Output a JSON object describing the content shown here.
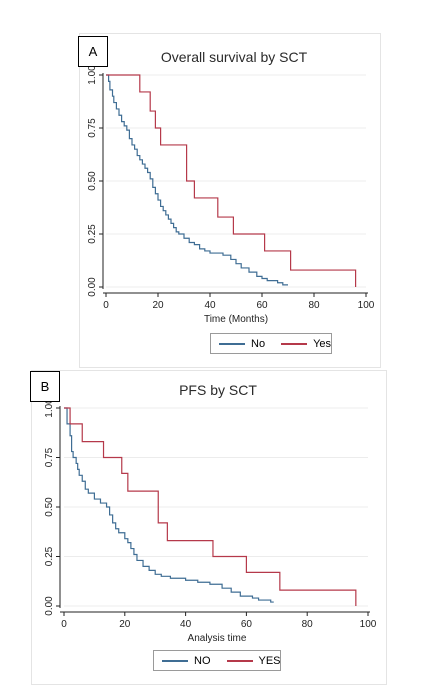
{
  "chart_data": [
    {
      "type": "line",
      "panel_label": "A",
      "title": "Overall survival by SCT",
      "xlabel": "Time (Months)",
      "ylabel": "",
      "xlim": [
        0,
        100
      ],
      "ylim": [
        0,
        1
      ],
      "x_ticks": [
        "0",
        "20",
        "40",
        "60",
        "80",
        "100"
      ],
      "y_ticks": [
        "0.00",
        "0.25",
        "0.50",
        "0.75",
        "1.00"
      ],
      "legend_position": "bottom",
      "series": [
        {
          "name": "No",
          "color": "#3f6d94",
          "step": true,
          "points": [
            [
              0,
              1.0
            ],
            [
              1,
              0.97
            ],
            [
              1.5,
              0.93
            ],
            [
              2.5,
              0.9
            ],
            [
              3,
              0.87
            ],
            [
              4,
              0.84
            ],
            [
              5,
              0.81
            ],
            [
              6,
              0.78
            ],
            [
              7,
              0.76
            ],
            [
              8,
              0.74
            ],
            [
              9,
              0.7
            ],
            [
              10,
              0.67
            ],
            [
              11,
              0.65
            ],
            [
              12,
              0.62
            ],
            [
              13,
              0.6
            ],
            [
              14,
              0.58
            ],
            [
              15,
              0.56
            ],
            [
              16,
              0.54
            ],
            [
              17,
              0.51
            ],
            [
              18,
              0.47
            ],
            [
              19,
              0.44
            ],
            [
              20,
              0.41
            ],
            [
              21,
              0.38
            ],
            [
              22,
              0.36
            ],
            [
              23,
              0.34
            ],
            [
              24,
              0.32
            ],
            [
              25,
              0.3
            ],
            [
              26,
              0.28
            ],
            [
              27,
              0.26
            ],
            [
              28,
              0.25
            ],
            [
              30,
              0.23
            ],
            [
              32,
              0.21
            ],
            [
              34,
              0.2
            ],
            [
              36,
              0.18
            ],
            [
              38,
              0.17
            ],
            [
              40,
              0.16
            ],
            [
              45,
              0.15
            ],
            [
              48,
              0.13
            ],
            [
              50,
              0.11
            ],
            [
              52,
              0.09
            ],
            [
              55,
              0.07
            ],
            [
              58,
              0.05
            ],
            [
              60,
              0.04
            ],
            [
              62,
              0.03
            ],
            [
              66,
              0.02
            ],
            [
              68,
              0.01
            ],
            [
              70,
              0.01
            ]
          ]
        },
        {
          "name": "Yes",
          "color": "#b5394a",
          "step": true,
          "points": [
            [
              0,
              1.0
            ],
            [
              13,
              0.92
            ],
            [
              17,
              0.83
            ],
            [
              19,
              0.75
            ],
            [
              21,
              0.67
            ],
            [
              31,
              0.5
            ],
            [
              34,
              0.42
            ],
            [
              43,
              0.33
            ],
            [
              49,
              0.25
            ],
            [
              61,
              0.17
            ],
            [
              71,
              0.08
            ],
            [
              96,
              0.08
            ],
            [
              96,
              0.0
            ]
          ]
        }
      ]
    },
    {
      "type": "line",
      "panel_label": "B",
      "title": "PFS by SCT",
      "xlabel": "Analysis time",
      "ylabel": "",
      "xlim": [
        0,
        100
      ],
      "ylim": [
        0,
        1
      ],
      "x_ticks": [
        "0",
        "20",
        "40",
        "60",
        "80",
        "100"
      ],
      "y_ticks": [
        "0.00",
        "0.25",
        "0.50",
        "0.75",
        "1.00"
      ],
      "legend_position": "bottom",
      "series": [
        {
          "name": "NO",
          "color": "#3f6d94",
          "step": true,
          "points": [
            [
              0,
              1.0
            ],
            [
              1,
              0.92
            ],
            [
              2,
              0.86
            ],
            [
              2.5,
              0.78
            ],
            [
              3,
              0.75
            ],
            [
              4,
              0.72
            ],
            [
              4.5,
              0.69
            ],
            [
              5,
              0.66
            ],
            [
              6,
              0.63
            ],
            [
              7,
              0.59
            ],
            [
              8,
              0.57
            ],
            [
              10,
              0.54
            ],
            [
              12,
              0.52
            ],
            [
              14,
              0.5
            ],
            [
              15,
              0.46
            ],
            [
              16,
              0.42
            ],
            [
              17,
              0.39
            ],
            [
              18,
              0.37
            ],
            [
              20,
              0.34
            ],
            [
              21,
              0.32
            ],
            [
              22,
              0.29
            ],
            [
              23,
              0.26
            ],
            [
              24,
              0.23
            ],
            [
              26,
              0.2
            ],
            [
              28,
              0.18
            ],
            [
              30,
              0.16
            ],
            [
              32,
              0.15
            ],
            [
              35,
              0.14
            ],
            [
              40,
              0.13
            ],
            [
              44,
              0.12
            ],
            [
              48,
              0.11
            ],
            [
              52,
              0.09
            ],
            [
              55,
              0.07
            ],
            [
              58,
              0.05
            ],
            [
              62,
              0.04
            ],
            [
              64,
              0.03
            ],
            [
              68,
              0.02
            ],
            [
              69,
              0.02
            ]
          ]
        },
        {
          "name": "YES",
          "color": "#b5394a",
          "step": true,
          "points": [
            [
              0,
              1.0
            ],
            [
              2,
              0.92
            ],
            [
              6,
              0.83
            ],
            [
              13,
              0.75
            ],
            [
              19,
              0.67
            ],
            [
              21,
              0.58
            ],
            [
              31,
              0.42
            ],
            [
              34,
              0.33
            ],
            [
              49,
              0.25
            ],
            [
              60,
              0.17
            ],
            [
              71,
              0.08
            ],
            [
              96,
              0.08
            ],
            [
              96,
              0.0
            ]
          ]
        }
      ]
    }
  ]
}
